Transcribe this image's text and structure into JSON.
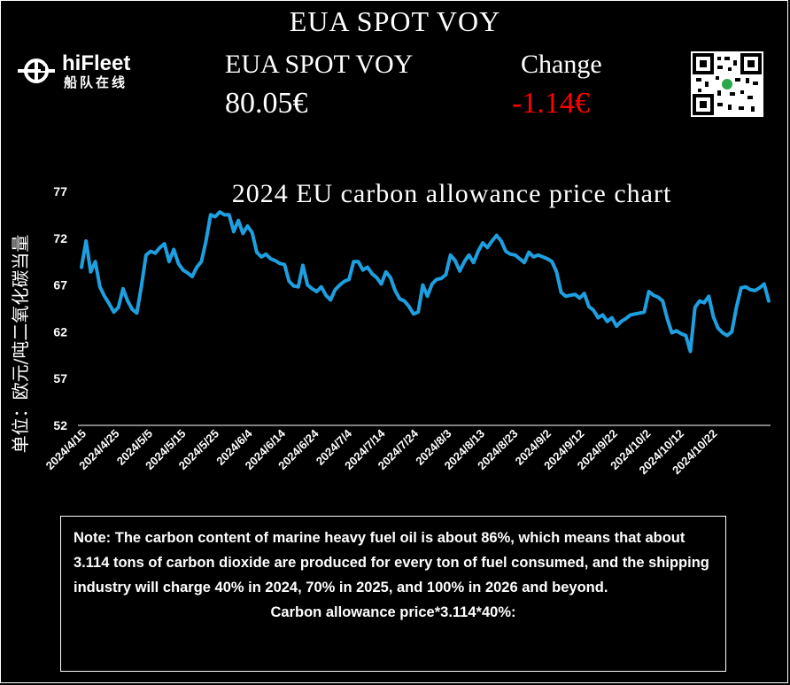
{
  "header": {
    "top_title": "EUA SPOT VOY",
    "logo_name": "hiFleet",
    "logo_sub": "船队在线",
    "price_label": "EUA SPOT VOY",
    "price_value": "80.05€",
    "change_label": "Change",
    "change_value": "-1.14€",
    "change_color": "#ff0000",
    "qr_icon": "qr-code-icon"
  },
  "chart_data": {
    "type": "line",
    "title": "2024 EU carbon allowance price chart",
    "ylabel": "单位：欧元/吨二氧化碳当量",
    "xlabel": "",
    "ylim": [
      52,
      77
    ],
    "yticks": [
      "52",
      "57",
      "62",
      "67",
      "72",
      "77"
    ],
    "line_color": "#1e9fe0",
    "x_tick_labels": [
      "2024/4/15",
      "2024/4/25",
      "2024/5/5",
      "2024/5/15",
      "2024/5/25",
      "2024/6/4",
      "2024/6/14",
      "2024/6/24",
      "2024/7/4",
      "2024/7/14",
      "2024/7/24",
      "2024/8/3",
      "2024/8/13",
      "2024/8/23",
      "2024/9/2",
      "2024/9/12",
      "2024/9/22",
      "2024/10/2",
      "2024/10/12",
      "2024/10/22"
    ],
    "values": [
      68.9,
      71.7,
      68.4,
      69.5,
      66.8,
      65.8,
      65.0,
      64.1,
      64.6,
      66.6,
      65.3,
      64.4,
      64.0,
      66.9,
      70.2,
      70.6,
      70.4,
      71.0,
      71.4,
      69.5,
      70.8,
      69.3,
      68.6,
      68.3,
      67.9,
      68.9,
      69.5,
      71.7,
      74.5,
      74.3,
      74.8,
      74.5,
      74.5,
      72.7,
      73.9,
      72.5,
      73.3,
      72.6,
      70.5,
      70.0,
      70.3,
      69.8,
      69.6,
      69.3,
      69.2,
      67.4,
      66.9,
      66.8,
      69.1,
      67.0,
      66.6,
      66.3,
      66.8,
      65.9,
      65.4,
      66.5,
      67.0,
      67.4,
      67.6,
      69.5,
      69.5,
      68.6,
      68.9,
      68.2,
      67.8,
      67.1,
      68.4,
      67.8,
      66.4,
      65.5,
      65.3,
      64.7,
      63.9,
      64.1,
      67.0,
      65.8,
      67.1,
      67.6,
      67.7,
      68.1,
      70.2,
      69.6,
      68.5,
      69.5,
      70.2,
      69.4,
      70.6,
      71.5,
      71.0,
      71.7,
      72.3,
      71.7,
      70.6,
      70.3,
      70.2,
      69.8,
      69.4,
      70.5,
      70.0,
      70.2,
      70.0,
      69.8,
      69.5,
      68.4,
      66.2,
      65.8,
      65.9,
      66.0,
      65.6,
      66.1,
      64.7,
      64.3,
      63.5,
      63.8,
      63.1,
      63.5,
      62.6,
      63.1,
      63.4,
      63.8,
      63.9,
      64.0,
      64.1,
      66.3,
      65.9,
      65.7,
      65.3,
      63.4,
      61.9,
      62.1,
      61.8,
      61.6,
      59.9,
      64.6,
      65.3,
      65.1,
      65.8,
      63.6,
      62.4,
      61.9,
      61.6,
      62.0,
      64.6,
      66.7,
      66.8,
      66.5,
      66.4,
      66.7,
      67.1,
      65.3
    ],
    "grid": false,
    "legend": "none"
  },
  "note": {
    "text": "Note: The carbon content of marine heavy fuel oil is about 86%, which means that about 3.114 tons of carbon dioxide are produced for every ton of fuel consumed, and the shipping industry will charge 40% in 2024, 70% in 2025, and 100% in 2026 and beyond.",
    "formula": "Carbon allowance price*3.114*40%:"
  }
}
